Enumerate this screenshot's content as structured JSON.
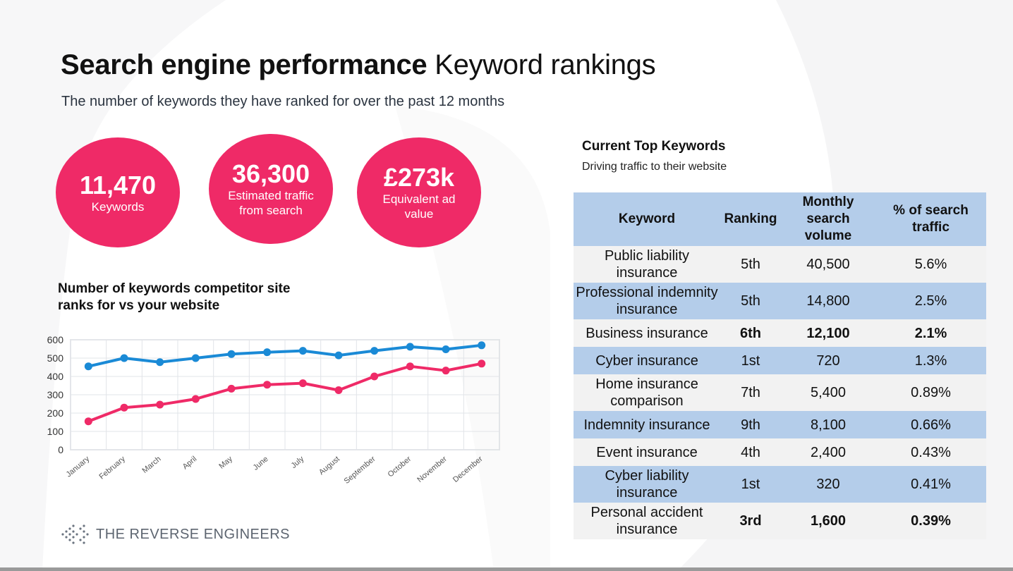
{
  "title_bold": "Search engine performance",
  "title_light": "Keyword rankings",
  "subtitle": "The number of keywords they have ranked for over the past 12 months",
  "stats": [
    {
      "value": "11,470",
      "label": "Keywords"
    },
    {
      "value": "36,300",
      "label": "Estimated traffic from search"
    },
    {
      "value": "£273k",
      "label": "Equivalent ad value"
    }
  ],
  "chart_title": "Number of keywords competitor site ranks for vs your website",
  "chart_data": {
    "type": "line",
    "categories": [
      "January",
      "February",
      "March",
      "April",
      "May",
      "June",
      "July",
      "August",
      "September",
      "October",
      "November",
      "December"
    ],
    "series": [
      {
        "color": "#1a8ad6",
        "values": [
          455,
          500,
          478,
          500,
          522,
          532,
          540,
          515,
          540,
          562,
          548,
          570
        ]
      },
      {
        "color": "#ef2a67",
        "values": [
          155,
          230,
          246,
          277,
          333,
          355,
          363,
          325,
          400,
          455,
          432,
          470
        ]
      }
    ],
    "yticks": [
      0,
      100,
      200,
      300,
      400,
      500,
      600
    ],
    "ylim": [
      0,
      600
    ],
    "grid": true,
    "xlabel": "",
    "ylabel": ""
  },
  "right_title": "Current Top Keywords",
  "right_subtitle": "Driving traffic to their website",
  "table": {
    "headers": [
      "Keyword",
      "Ranking",
      "Monthly search volume",
      "% of search traffic"
    ],
    "rows": [
      {
        "keyword": "Public liability insurance",
        "ranking": "5th",
        "volume": "40,500",
        "traffic": "5.6%"
      },
      {
        "keyword": "Professional indemnity insurance",
        "ranking": "5th",
        "volume": "14,800",
        "traffic": "2.5%"
      },
      {
        "keyword": "Business insurance",
        "ranking": "6th",
        "volume": "12,100",
        "traffic": "2.1%"
      },
      {
        "keyword": "Cyber insurance",
        "ranking": "1st",
        "volume": "720",
        "traffic": "1.3%"
      },
      {
        "keyword": "Home insurance comparison",
        "ranking": "7th",
        "volume": "5,400",
        "traffic": "0.89%"
      },
      {
        "keyword": "Indemnity insurance",
        "ranking": "9th",
        "volume": "8,100",
        "traffic": "0.66%"
      },
      {
        "keyword": "Event insurance",
        "ranking": "4th",
        "volume": "2,400",
        "traffic": "0.43%"
      },
      {
        "keyword": "Cyber liability insurance",
        "ranking": "1st",
        "volume": "320",
        "traffic": "0.41%"
      },
      {
        "keyword": "Personal accident insurance",
        "ranking": "3rd",
        "volume": "1,600",
        "traffic": "0.39%"
      }
    ]
  },
  "logo_text": "THE REVERSE ENGINEERS",
  "logo_icon": "dotted-arrow-icon"
}
